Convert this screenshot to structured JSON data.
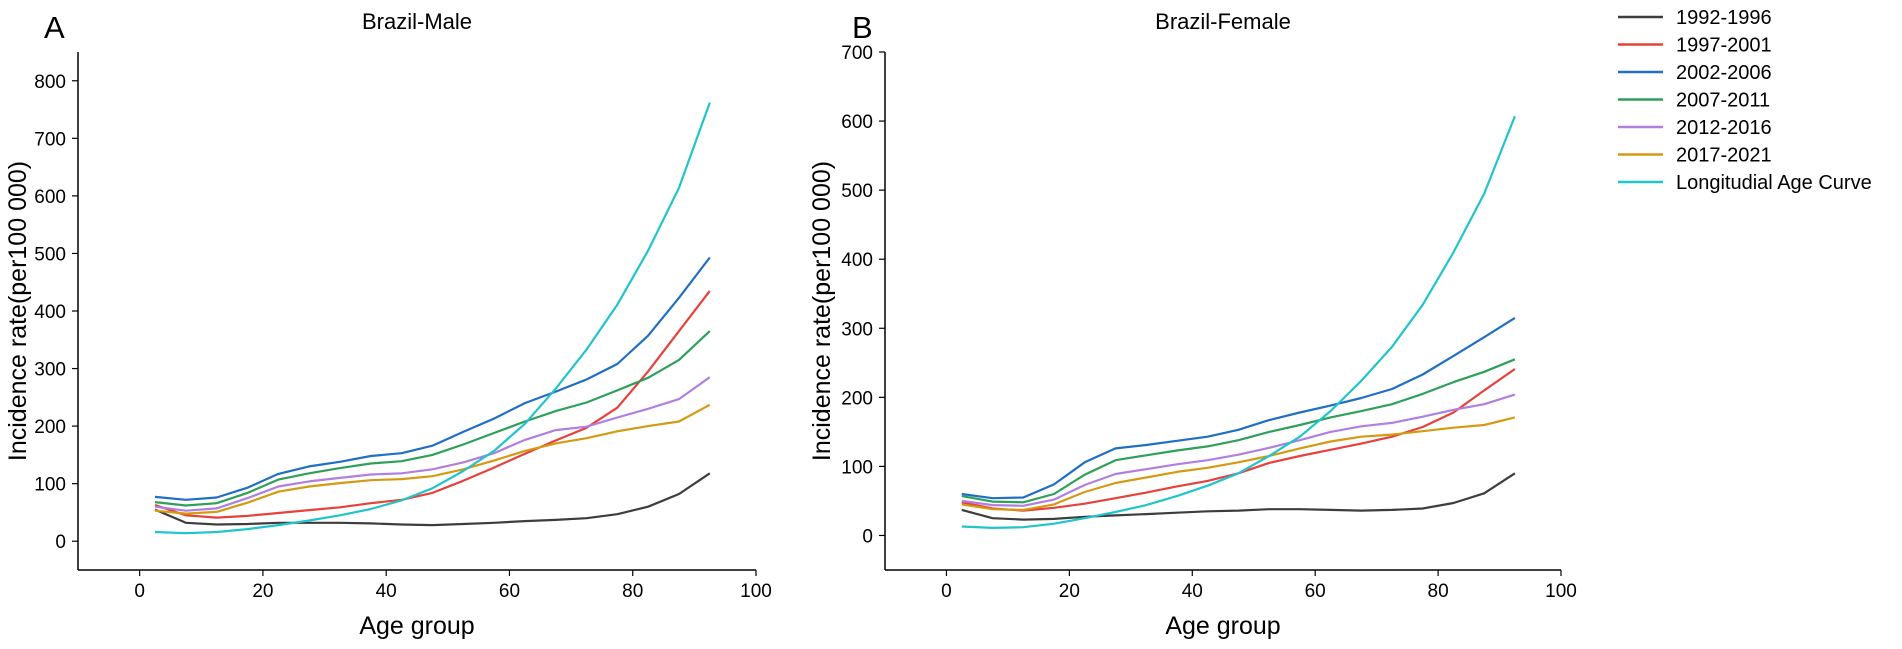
{
  "chart_data": [
    {
      "type": "line",
      "panel_label": "A",
      "title": "Brazil-Male",
      "xlabel": "Age group",
      "ylabel": "Incidence rate(per100 000)",
      "xlim": [
        -10,
        100
      ],
      "ylim": [
        -50,
        850
      ],
      "xticks": [
        "0",
        "20",
        "40",
        "60",
        "80",
        "100"
      ],
      "yticks": [
        "0",
        "100",
        "200",
        "300",
        "400",
        "500",
        "600",
        "700",
        "800"
      ],
      "x": [
        2.5,
        7.5,
        12.5,
        17.5,
        22.5,
        27.5,
        32.5,
        37.5,
        42.5,
        47.5,
        52.5,
        57.5,
        62.5,
        67.5,
        72.5,
        77.5,
        82.5,
        87.5,
        92.5
      ],
      "series": [
        {
          "name": "1992-1996",
          "color": "#3d3d3d",
          "values": [
            55,
            32,
            29,
            30,
            32,
            32,
            32,
            31,
            29,
            28,
            30,
            32,
            35,
            37,
            40,
            47,
            60,
            82,
            118
          ]
        },
        {
          "name": "1997-2001",
          "color": "#e8413c",
          "values": [
            63,
            45,
            41,
            44,
            49,
            54,
            59,
            66,
            72,
            84,
            105,
            128,
            152,
            175,
            197,
            232,
            295,
            365,
            435
          ]
        },
        {
          "name": "2002-2006",
          "color": "#1f6fc5",
          "values": [
            77,
            72,
            76,
            93,
            117,
            130,
            138,
            148,
            153,
            166,
            190,
            213,
            240,
            260,
            281,
            308,
            357,
            423,
            493
          ]
        },
        {
          "name": "2007-2011",
          "color": "#2ea05a",
          "values": [
            68,
            62,
            66,
            84,
            107,
            118,
            127,
            135,
            139,
            150,
            168,
            188,
            208,
            226,
            241,
            262,
            284,
            315,
            365
          ]
        },
        {
          "name": "2012-2016",
          "color": "#b07fe0",
          "values": [
            60,
            53,
            57,
            75,
            95,
            104,
            110,
            116,
            118,
            125,
            137,
            153,
            176,
            193,
            199,
            215,
            230,
            247,
            285
          ]
        },
        {
          "name": "2017-2021",
          "color": "#d49a12",
          "values": [
            53,
            48,
            51,
            67,
            86,
            95,
            101,
            106,
            108,
            113,
            125,
            140,
            157,
            170,
            179,
            191,
            200,
            208,
            237
          ]
        },
        {
          "name": "Longitudial Age Curve",
          "color": "#22c4cc",
          "values": [
            16,
            14,
            16,
            21,
            28,
            36,
            45,
            56,
            71,
            92,
            122,
            157,
            204,
            265,
            333,
            411,
            505,
            614,
            762
          ]
        }
      ]
    },
    {
      "type": "line",
      "panel_label": "B",
      "title": "Brazil-Female",
      "xlabel": "Age group",
      "ylabel": "Incidence rate(per100 000)",
      "xlim": [
        -10,
        100
      ],
      "ylim": [
        -50,
        700
      ],
      "xticks": [
        "0",
        "20",
        "40",
        "60",
        "80",
        "100"
      ],
      "yticks": [
        "0",
        "100",
        "200",
        "300",
        "400",
        "500",
        "600",
        "700"
      ],
      "x": [
        2.5,
        7.5,
        12.5,
        17.5,
        22.5,
        27.5,
        32.5,
        37.5,
        42.5,
        47.5,
        52.5,
        57.5,
        62.5,
        67.5,
        72.5,
        77.5,
        82.5,
        87.5,
        92.5
      ],
      "series": [
        {
          "name": "1992-1996",
          "color": "#3d3d3d",
          "values": [
            37,
            25,
            23,
            24,
            27,
            29,
            31,
            33,
            35,
            36,
            38,
            38,
            37,
            36,
            37,
            39,
            47,
            61,
            90
          ]
        },
        {
          "name": "1997-2001",
          "color": "#e8413c",
          "values": [
            48,
            39,
            36,
            40,
            46,
            54,
            62,
            71,
            79,
            90,
            105,
            115,
            124,
            133,
            143,
            157,
            178,
            210,
            241
          ]
        },
        {
          "name": "2002-2006",
          "color": "#1f6fc5",
          "values": [
            60,
            54,
            55,
            74,
            106,
            126,
            131,
            137,
            143,
            153,
            167,
            178,
            188,
            199,
            212,
            233,
            260,
            287,
            315
          ]
        },
        {
          "name": "2007-2011",
          "color": "#2ea05a",
          "values": [
            57,
            49,
            48,
            60,
            88,
            109,
            116,
            123,
            129,
            138,
            150,
            160,
            171,
            180,
            190,
            205,
            222,
            237,
            255
          ]
        },
        {
          "name": "2012-2016",
          "color": "#b07fe0",
          "values": [
            50,
            44,
            43,
            52,
            73,
            89,
            96,
            103,
            109,
            117,
            127,
            138,
            150,
            158,
            163,
            172,
            182,
            190,
            204
          ]
        },
        {
          "name": "2017-2021",
          "color": "#d49a12",
          "values": [
            45,
            38,
            37,
            45,
            63,
            76,
            84,
            92,
            98,
            106,
            115,
            126,
            136,
            143,
            146,
            151,
            156,
            160,
            171
          ]
        },
        {
          "name": "Longitudial Age Curve",
          "color": "#22c4cc",
          "values": [
            13,
            11,
            12,
            17,
            25,
            34,
            44,
            57,
            72,
            90,
            115,
            143,
            180,
            224,
            273,
            334,
            410,
            495,
            607
          ]
        }
      ]
    }
  ]
}
